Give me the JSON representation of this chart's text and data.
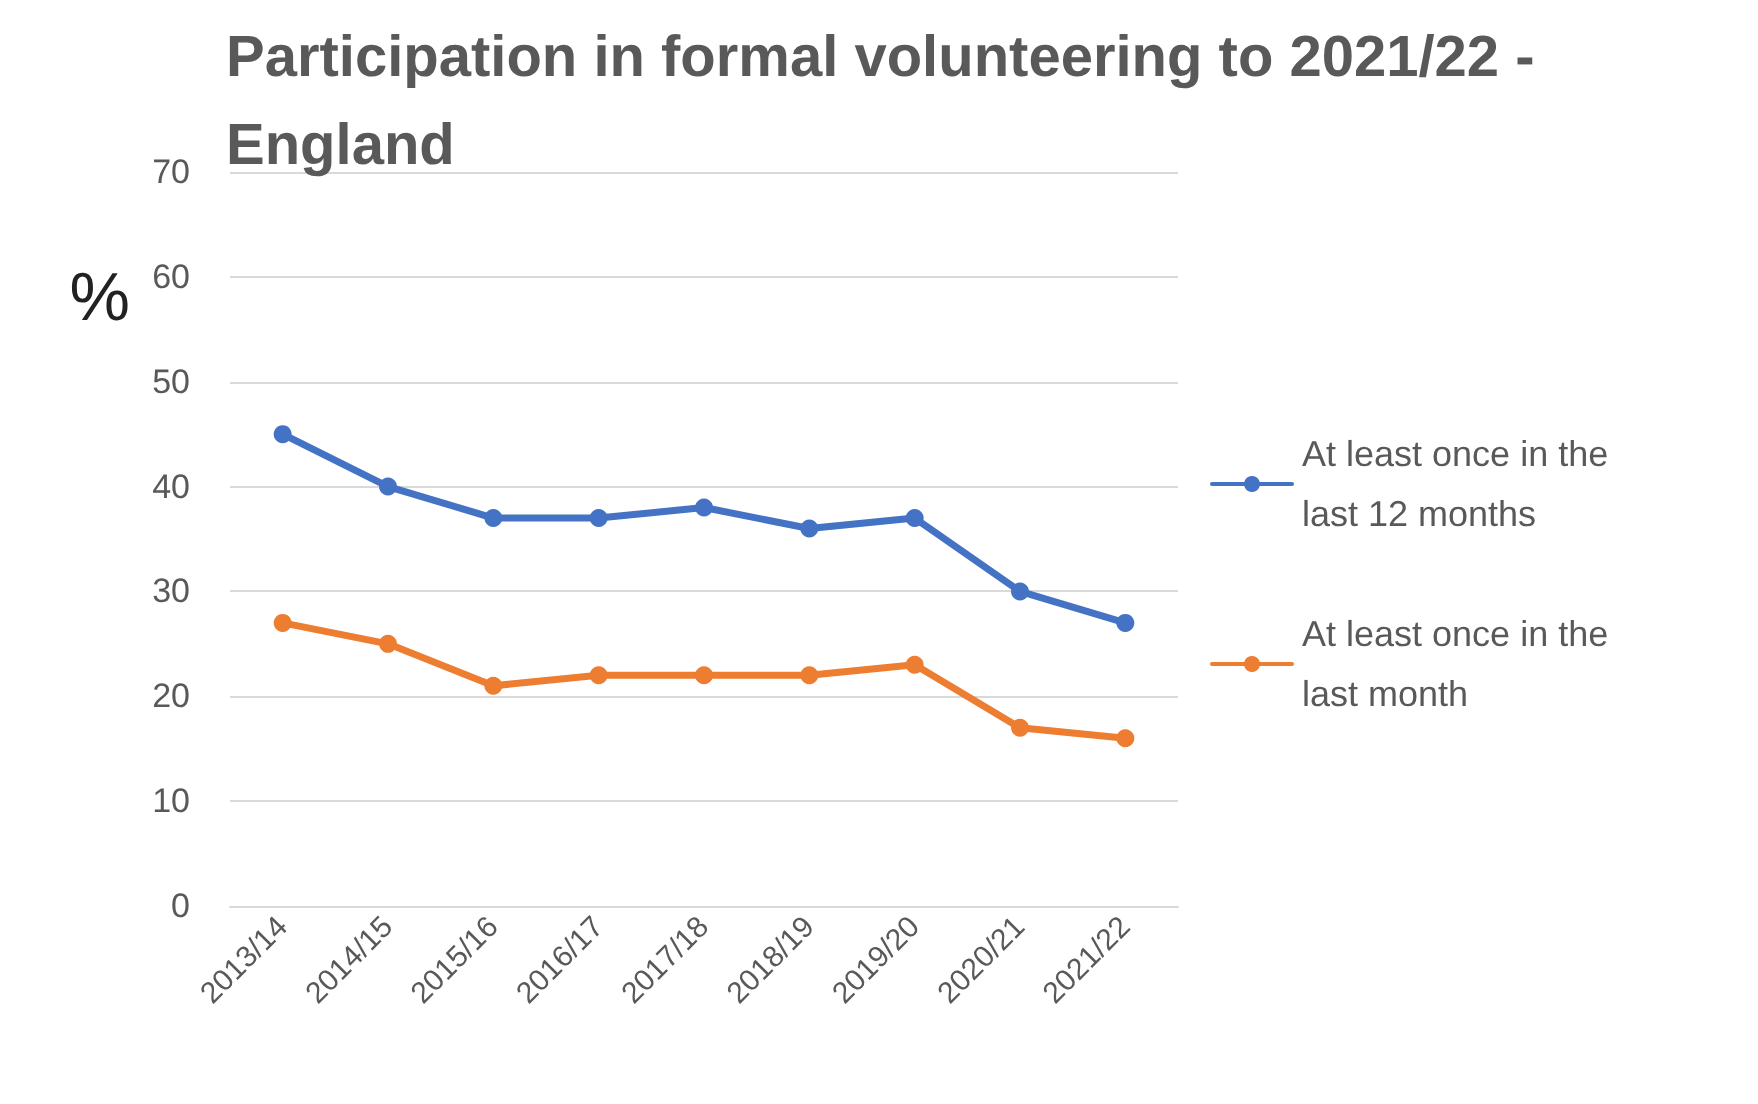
{
  "chart_data": {
    "type": "line",
    "title": "Participation in formal volunteering to 2021/22 - England",
    "ylabel": "%",
    "categories": [
      "2013/14",
      "2014/15",
      "2015/16",
      "2016/17",
      "2017/18",
      "2018/19",
      "2019/20",
      "2020/21",
      "2021/22"
    ],
    "series": [
      {
        "name": "At least once in the last 12 months",
        "color": "#4472c4",
        "values": [
          45,
          40,
          37,
          37,
          38,
          36,
          37,
          30,
          27
        ]
      },
      {
        "name": "At least once in the last month",
        "color": "#ed7d31",
        "values": [
          27,
          25,
          21,
          22,
          22,
          22,
          23,
          17,
          16
        ]
      }
    ],
    "ylim": [
      0,
      70
    ],
    "yticks": [
      0,
      10,
      20,
      30,
      40,
      50,
      60,
      70
    ],
    "grid": "y",
    "legend": "right",
    "marker": "circle",
    "line_style": "solid"
  }
}
